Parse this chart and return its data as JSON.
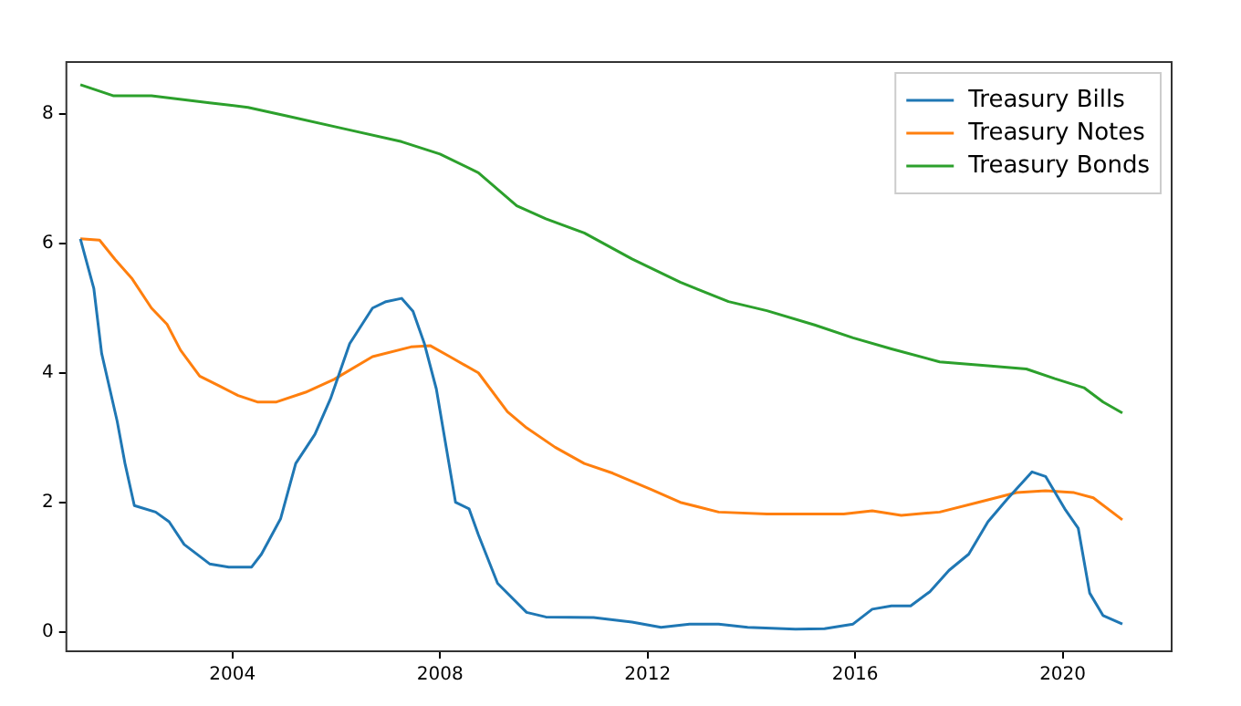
{
  "chart_data": {
    "type": "line",
    "xlim": [
      2000.8,
      2022.1
    ],
    "xticks": [
      2004,
      2008,
      2012,
      2016,
      2020
    ],
    "ylim": [
      -0.3,
      8.8
    ],
    "yticks": [
      0,
      2,
      4,
      6,
      8
    ],
    "grid": false,
    "legend": "top right",
    "marker": "none",
    "line_style": "solid",
    "series": [
      {
        "name": "Treasury Bills",
        "color": "#1f77b4",
        "x": [
          2001.07,
          2001.33,
          2001.48,
          2001.78,
          2001.93,
          2002.11,
          2002.52,
          2002.78,
          2003.07,
          2003.56,
          2003.93,
          2004.37,
          2004.56,
          2004.93,
          2005.22,
          2005.59,
          2005.89,
          2006.26,
          2006.7,
          2006.96,
          2007.26,
          2007.48,
          2007.7,
          2007.93,
          2008.3,
          2008.56,
          2008.74,
          2009.11,
          2009.67,
          2010.04,
          2010.96,
          2011.7,
          2012.26,
          2012.81,
          2013.37,
          2013.93,
          2014.85,
          2015.41,
          2015.96,
          2016.33,
          2016.7,
          2017.07,
          2017.44,
          2017.81,
          2018.19,
          2018.56,
          2018.93,
          2019.41,
          2019.67,
          2020.04,
          2020.3,
          2020.52,
          2020.78,
          2021.15
        ],
        "values": [
          6.07,
          5.3,
          4.3,
          3.25,
          2.6,
          1.95,
          1.85,
          1.7,
          1.35,
          1.05,
          1.0,
          1.0,
          1.2,
          1.75,
          2.6,
          3.05,
          3.6,
          4.45,
          5.0,
          5.1,
          5.15,
          4.95,
          4.45,
          3.75,
          2.0,
          1.9,
          1.5,
          0.75,
          0.3,
          0.23,
          0.22,
          0.15,
          0.07,
          0.12,
          0.12,
          0.07,
          0.04,
          0.05,
          0.12,
          0.35,
          0.4,
          0.4,
          0.62,
          0.95,
          1.2,
          1.7,
          2.05,
          2.47,
          2.4,
          1.9,
          1.6,
          0.6,
          0.25,
          0.12
        ]
      },
      {
        "name": "Treasury Notes",
        "color": "#ff7f0e",
        "x": [
          2001.07,
          2001.44,
          2001.74,
          2002.07,
          2002.44,
          2002.74,
          2003.0,
          2003.37,
          2003.74,
          2004.11,
          2004.48,
          2004.85,
          2005.41,
          2005.96,
          2006.7,
          2007.44,
          2007.81,
          2008.19,
          2008.74,
          2009.3,
          2009.67,
          2010.22,
          2010.78,
          2011.33,
          2012.07,
          2012.63,
          2013.37,
          2014.3,
          2015.04,
          2015.78,
          2016.33,
          2016.89,
          2017.63,
          2018.37,
          2019.11,
          2019.67,
          2020.22,
          2020.59,
          2021.15
        ],
        "values": [
          6.07,
          6.05,
          5.75,
          5.45,
          5.0,
          4.75,
          4.35,
          3.95,
          3.8,
          3.65,
          3.55,
          3.55,
          3.7,
          3.9,
          4.25,
          4.4,
          4.42,
          4.25,
          4.0,
          3.4,
          3.15,
          2.85,
          2.6,
          2.45,
          2.2,
          2.0,
          1.85,
          1.82,
          1.82,
          1.82,
          1.87,
          1.8,
          1.85,
          2.0,
          2.15,
          2.18,
          2.15,
          2.07,
          1.73
        ]
      },
      {
        "name": "Treasury Bonds",
        "color": "#2ca02c",
        "x": [
          2001.07,
          2001.7,
          2002.44,
          2003.56,
          2004.3,
          2005.04,
          2006.15,
          2007.26,
          2008.0,
          2008.74,
          2009.48,
          2010.04,
          2010.78,
          2011.7,
          2012.63,
          2013.56,
          2014.3,
          2015.22,
          2015.96,
          2016.7,
          2017.63,
          2018.56,
          2019.3,
          2019.85,
          2020.41,
          2020.78,
          2021.15
        ],
        "values": [
          8.45,
          8.28,
          8.28,
          8.17,
          8.1,
          7.97,
          7.77,
          7.57,
          7.38,
          7.09,
          6.58,
          6.38,
          6.16,
          5.76,
          5.4,
          5.1,
          4.96,
          4.74,
          4.54,
          4.37,
          4.17,
          4.11,
          4.06,
          3.91,
          3.77,
          3.55,
          3.38
        ]
      }
    ]
  }
}
